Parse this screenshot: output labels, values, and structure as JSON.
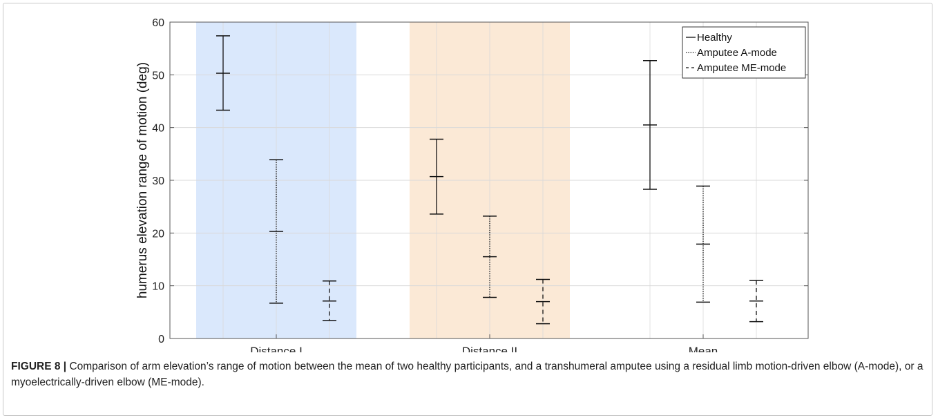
{
  "caption": {
    "label": "FIGURE 8 |",
    "text": " Comparison of arm elevation’s range of motion between the mean of two healthy participants, and a transhumeral amputee using a residual limb motion-driven elbow (A-mode), or a myoelectrically-driven elbow (ME-mode)."
  },
  "chart_data": {
    "type": "errorbar",
    "title": "",
    "xlabel": "",
    "ylabel": "humerus elevation range of motion (deg)",
    "ylim": [
      0,
      60
    ],
    "yticks": [
      0,
      10,
      20,
      30,
      40,
      50,
      60
    ],
    "categories": [
      "Distance I",
      "Distance II",
      "Mean"
    ],
    "grid": true,
    "legend_position": "top-right",
    "shaded_regions": [
      {
        "category": "Distance I",
        "color": "#dae8fc"
      },
      {
        "category": "Distance II",
        "color": "#fbe9d6"
      }
    ],
    "series": [
      {
        "name": "Healthy",
        "line_style": "solid",
        "mean": [
          50.3,
          30.7,
          40.5
        ],
        "lower": [
          43.3,
          23.6,
          28.3
        ],
        "upper": [
          57.4,
          37.8,
          52.7
        ]
      },
      {
        "name": "Amputee A-mode",
        "line_style": "dotted",
        "mean": [
          20.3,
          15.5,
          17.9
        ],
        "lower": [
          6.7,
          7.8,
          6.9
        ],
        "upper": [
          33.9,
          23.2,
          28.9
        ]
      },
      {
        "name": "Amputee ME-mode",
        "line_style": "dashed",
        "mean": [
          7.1,
          7.0,
          7.1
        ],
        "lower": [
          3.4,
          2.8,
          3.2
        ],
        "upper": [
          10.9,
          11.2,
          11.0
        ]
      }
    ]
  }
}
